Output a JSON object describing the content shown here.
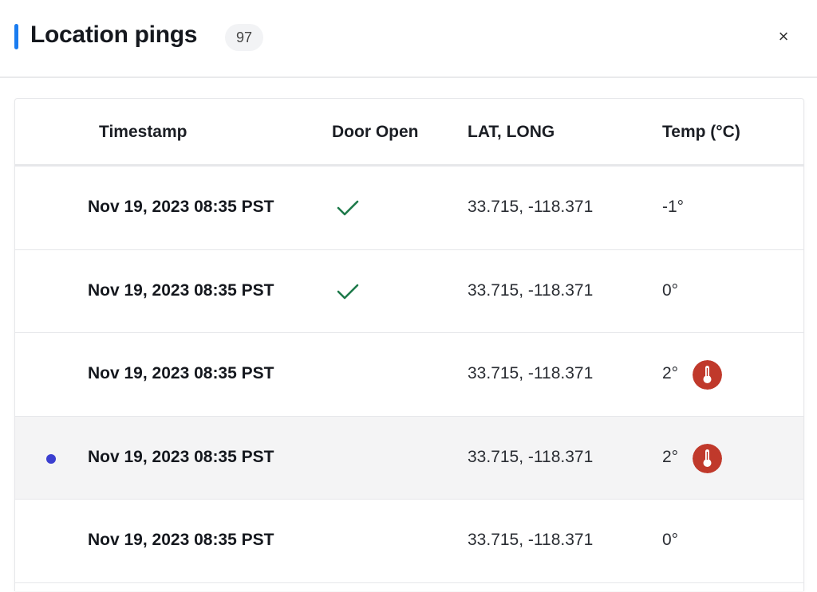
{
  "header": {
    "title": "Location pings",
    "count": "97",
    "close_label": "×",
    "accent": "#1a7cf0"
  },
  "table": {
    "columns": [
      "Timestamp",
      "Door Open",
      "LAT, LONG",
      "Temp (°C)"
    ],
    "rows": [
      {
        "timestamp": "Nov 19, 2023 08:35 PST",
        "door_open": true,
        "latlong": "33.715, -118.371",
        "temp": "-1°",
        "temp_alert": false,
        "selected": false
      },
      {
        "timestamp": "Nov 19, 2023 08:35 PST",
        "door_open": true,
        "latlong": "33.715, -118.371",
        "temp": "0°",
        "temp_alert": false,
        "selected": false
      },
      {
        "timestamp": "Nov 19, 2023 08:35 PST",
        "door_open": false,
        "latlong": "33.715, -118.371",
        "temp": "2°",
        "temp_alert": true,
        "selected": false
      },
      {
        "timestamp": "Nov 19, 2023 08:35 PST",
        "door_open": false,
        "latlong": "33.715, -118.371",
        "temp": "2°",
        "temp_alert": true,
        "selected": true
      },
      {
        "timestamp": "Nov 19, 2023 08:35 PST",
        "door_open": false,
        "latlong": "33.715, -118.371",
        "temp": "0°",
        "temp_alert": false,
        "selected": false
      },
      {
        "timestamp": "",
        "door_open": false,
        "latlong": "",
        "temp": "",
        "temp_alert": false,
        "selected": false
      }
    ]
  },
  "colors": {
    "check": "#1e7a4a",
    "alert": "#c0392b",
    "selected_dot": "#3b3fd0"
  }
}
